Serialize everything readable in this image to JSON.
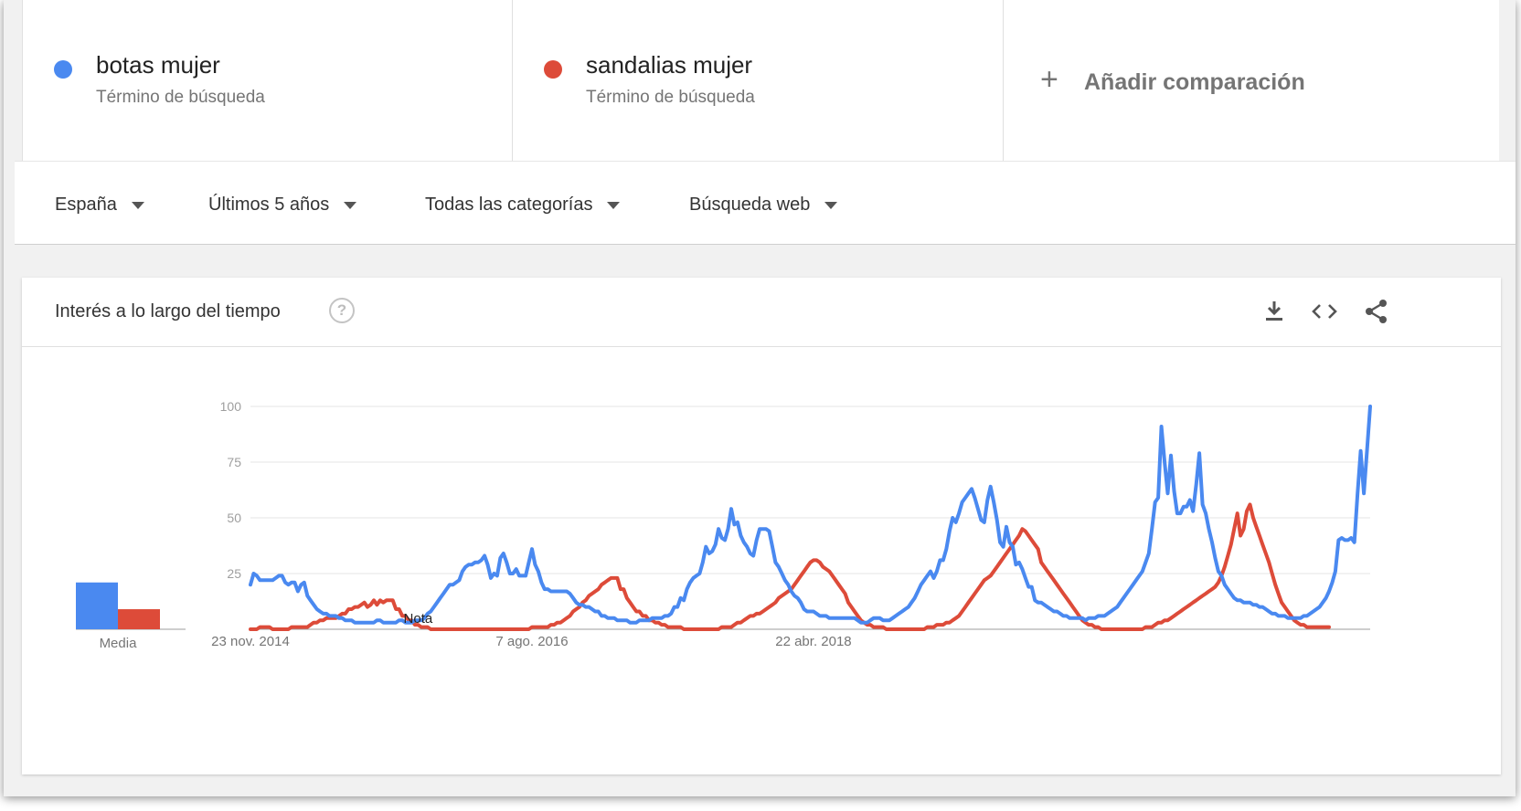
{
  "terms": [
    {
      "name": "botas mujer",
      "subtitle": "Término de búsqueda",
      "color": "#4a89f0"
    },
    {
      "name": "sandalias mujer",
      "subtitle": "Término de búsqueda",
      "color": "#dd4b39"
    }
  ],
  "add_comparison": {
    "icon": "plus-icon",
    "label": "Añadir comparación"
  },
  "filters": {
    "region": "España",
    "period": "Últimos 5 años",
    "category": "Todas las categorías",
    "search_type": "Búsqueda web"
  },
  "card": {
    "title": "Interés a lo largo del tiempo",
    "help_icon": "help-icon",
    "help_glyph": "?",
    "actions": [
      "download-icon",
      "embed-icon",
      "share-icon"
    ]
  },
  "chart_data": {
    "type": "line",
    "y_ticks": [
      "100",
      "75",
      "50",
      "25"
    ],
    "ylim": [
      0,
      100
    ],
    "x_tick_labels": [
      "23 nov. 2014",
      "7 ago. 2016",
      "22 abr. 2018"
    ],
    "x_tick_index": [
      0,
      89,
      178
    ],
    "annotation": {
      "label": "Nota",
      "at_index": 53
    },
    "grid": true,
    "average": {
      "label": "Media",
      "values": [
        21,
        9
      ]
    },
    "series": [
      {
        "name": "botas mujer",
        "color": "#4a89f0",
        "values": [
          20,
          25,
          24,
          22,
          22,
          22,
          22,
          22,
          23,
          24,
          24,
          21,
          20,
          21,
          21,
          17,
          20,
          21,
          15,
          13,
          11,
          9,
          8,
          7,
          7,
          6,
          6,
          6,
          5,
          5,
          4,
          4,
          4,
          3,
          3,
          3,
          3,
          3,
          3,
          3,
          4,
          4,
          3,
          3,
          3,
          3,
          3,
          4,
          4,
          3,
          3,
          3,
          4,
          4,
          4,
          5,
          7,
          8,
          10,
          12,
          14,
          16,
          18,
          20,
          20,
          21,
          22,
          26,
          28,
          29,
          29,
          30,
          30,
          31,
          33,
          29,
          23,
          25,
          24,
          32,
          34,
          30,
          25,
          25,
          27,
          24,
          24,
          24,
          30,
          36,
          29,
          26,
          21,
          18,
          18,
          17,
          17,
          17,
          17,
          17,
          17,
          16,
          14,
          12,
          11,
          11,
          10,
          10,
          9,
          8,
          8,
          6,
          6,
          5,
          5,
          5,
          4,
          4,
          4,
          4,
          3,
          3,
          3,
          4,
          4,
          4,
          4,
          5,
          5,
          5,
          5,
          6,
          6,
          7,
          10,
          10,
          14,
          13,
          18,
          21,
          23,
          24,
          25,
          30,
          37,
          34,
          35,
          38,
          45,
          41,
          40,
          45,
          54,
          47,
          48,
          42,
          39,
          37,
          34,
          33,
          40,
          45,
          45,
          45,
          44,
          37,
          30,
          28,
          25,
          22,
          20,
          17,
          15,
          14,
          12,
          9,
          8,
          8,
          8,
          7,
          6,
          6,
          6,
          5,
          5,
          5,
          5,
          5,
          5,
          5,
          5,
          5,
          4,
          3,
          3,
          3,
          4,
          5,
          5,
          5,
          4,
          4,
          4,
          5,
          6,
          7,
          8,
          9,
          10,
          12,
          14,
          17,
          20,
          22,
          24,
          26,
          23,
          26,
          31,
          31,
          36,
          44,
          50,
          48,
          52,
          57,
          59,
          61,
          63,
          59,
          54,
          49,
          48,
          58,
          64,
          57,
          49,
          39,
          37,
          46,
          39,
          37,
          29,
          30,
          27,
          23,
          19,
          19,
          13,
          12,
          12,
          11,
          10,
          9,
          8,
          8,
          7,
          6,
          6,
          5,
          5,
          5,
          5,
          5,
          4,
          5,
          5,
          5,
          6,
          6,
          6,
          7,
          8,
          9,
          10,
          12,
          14,
          16,
          18,
          20,
          22,
          24,
          26,
          30,
          34,
          45,
          57,
          59,
          91,
          75,
          61,
          78,
          62,
          52,
          52,
          55,
          55,
          58,
          53,
          65,
          79,
          56,
          52,
          45,
          39,
          32,
          26,
          24,
          20,
          18,
          16,
          14,
          13,
          13,
          12,
          12,
          12,
          11,
          11,
          10,
          10,
          9,
          8,
          7,
          7,
          6,
          6,
          6,
          5,
          5,
          5,
          5,
          5,
          6,
          6,
          7,
          8,
          9,
          10,
          12,
          14,
          17,
          21,
          26,
          40,
          41,
          40,
          40,
          41,
          39,
          61,
          80,
          61,
          80,
          100
        ]
      },
      {
        "name": "sandalias mujer",
        "color": "#dd4b39",
        "values": [
          0,
          0,
          0,
          1,
          1,
          1,
          1,
          0,
          0,
          0,
          0,
          0,
          0,
          1,
          1,
          1,
          1,
          1,
          1,
          2,
          3,
          3,
          4,
          4,
          5,
          5,
          5,
          5,
          6,
          7,
          7,
          9,
          9,
          10,
          10,
          11,
          12,
          10,
          11,
          13,
          11,
          13,
          12,
          13,
          13,
          13,
          9,
          9,
          6,
          6,
          4,
          4,
          2,
          2,
          1,
          1,
          1,
          0,
          0,
          0,
          0,
          0,
          0,
          0,
          0,
          0,
          0,
          0,
          0,
          0,
          0,
          0,
          0,
          0,
          0,
          0,
          0,
          0,
          0,
          0,
          0,
          0,
          0,
          0,
          0,
          0,
          0,
          0,
          0,
          1,
          1,
          1,
          1,
          1,
          1,
          2,
          2,
          3,
          3,
          4,
          5,
          6,
          8,
          9,
          10,
          12,
          13,
          15,
          16,
          17,
          18,
          20,
          21,
          22,
          23,
          23,
          23,
          18,
          18,
          14,
          12,
          10,
          8,
          8,
          6,
          6,
          4,
          4,
          3,
          3,
          2,
          2,
          1,
          1,
          1,
          1,
          1,
          0,
          0,
          0,
          0,
          0,
          0,
          0,
          0,
          0,
          0,
          0,
          0,
          1,
          1,
          1,
          1,
          2,
          3,
          3,
          4,
          5,
          6,
          6,
          7,
          7,
          8,
          9,
          10,
          11,
          12,
          14,
          15,
          16,
          17,
          18,
          20,
          22,
          24,
          26,
          28,
          30,
          31,
          31,
          30,
          28,
          27,
          26,
          24,
          22,
          20,
          18,
          16,
          12,
          10,
          8,
          6,
          4,
          3,
          2,
          2,
          1,
          1,
          1,
          1,
          0,
          0,
          0,
          0,
          0,
          0,
          0,
          0,
          0,
          0,
          0,
          0,
          0,
          1,
          1,
          1,
          2,
          2,
          2,
          3,
          3,
          4,
          5,
          6,
          8,
          10,
          12,
          14,
          16,
          18,
          20,
          22,
          23,
          24,
          26,
          28,
          30,
          32,
          34,
          36,
          38,
          40,
          42,
          45,
          44,
          42,
          40,
          38,
          36,
          30,
          28,
          26,
          24,
          22,
          20,
          18,
          16,
          14,
          12,
          10,
          8,
          6,
          4,
          3,
          2,
          2,
          1,
          1,
          0,
          0,
          0,
          0,
          0,
          0,
          0,
          0,
          0,
          0,
          0,
          0,
          0,
          0,
          1,
          1,
          1,
          2,
          3,
          3,
          4,
          4,
          5,
          6,
          7,
          8,
          9,
          10,
          11,
          12,
          13,
          14,
          15,
          16,
          17,
          18,
          19,
          21,
          24,
          28,
          33,
          38,
          45,
          52,
          42,
          45,
          53,
          56,
          50,
          46,
          42,
          38,
          34,
          30,
          25,
          20,
          16,
          12,
          10,
          8,
          6,
          4,
          3,
          2,
          2,
          1,
          1,
          1,
          1,
          1,
          1,
          1,
          1
        ]
      }
    ]
  }
}
